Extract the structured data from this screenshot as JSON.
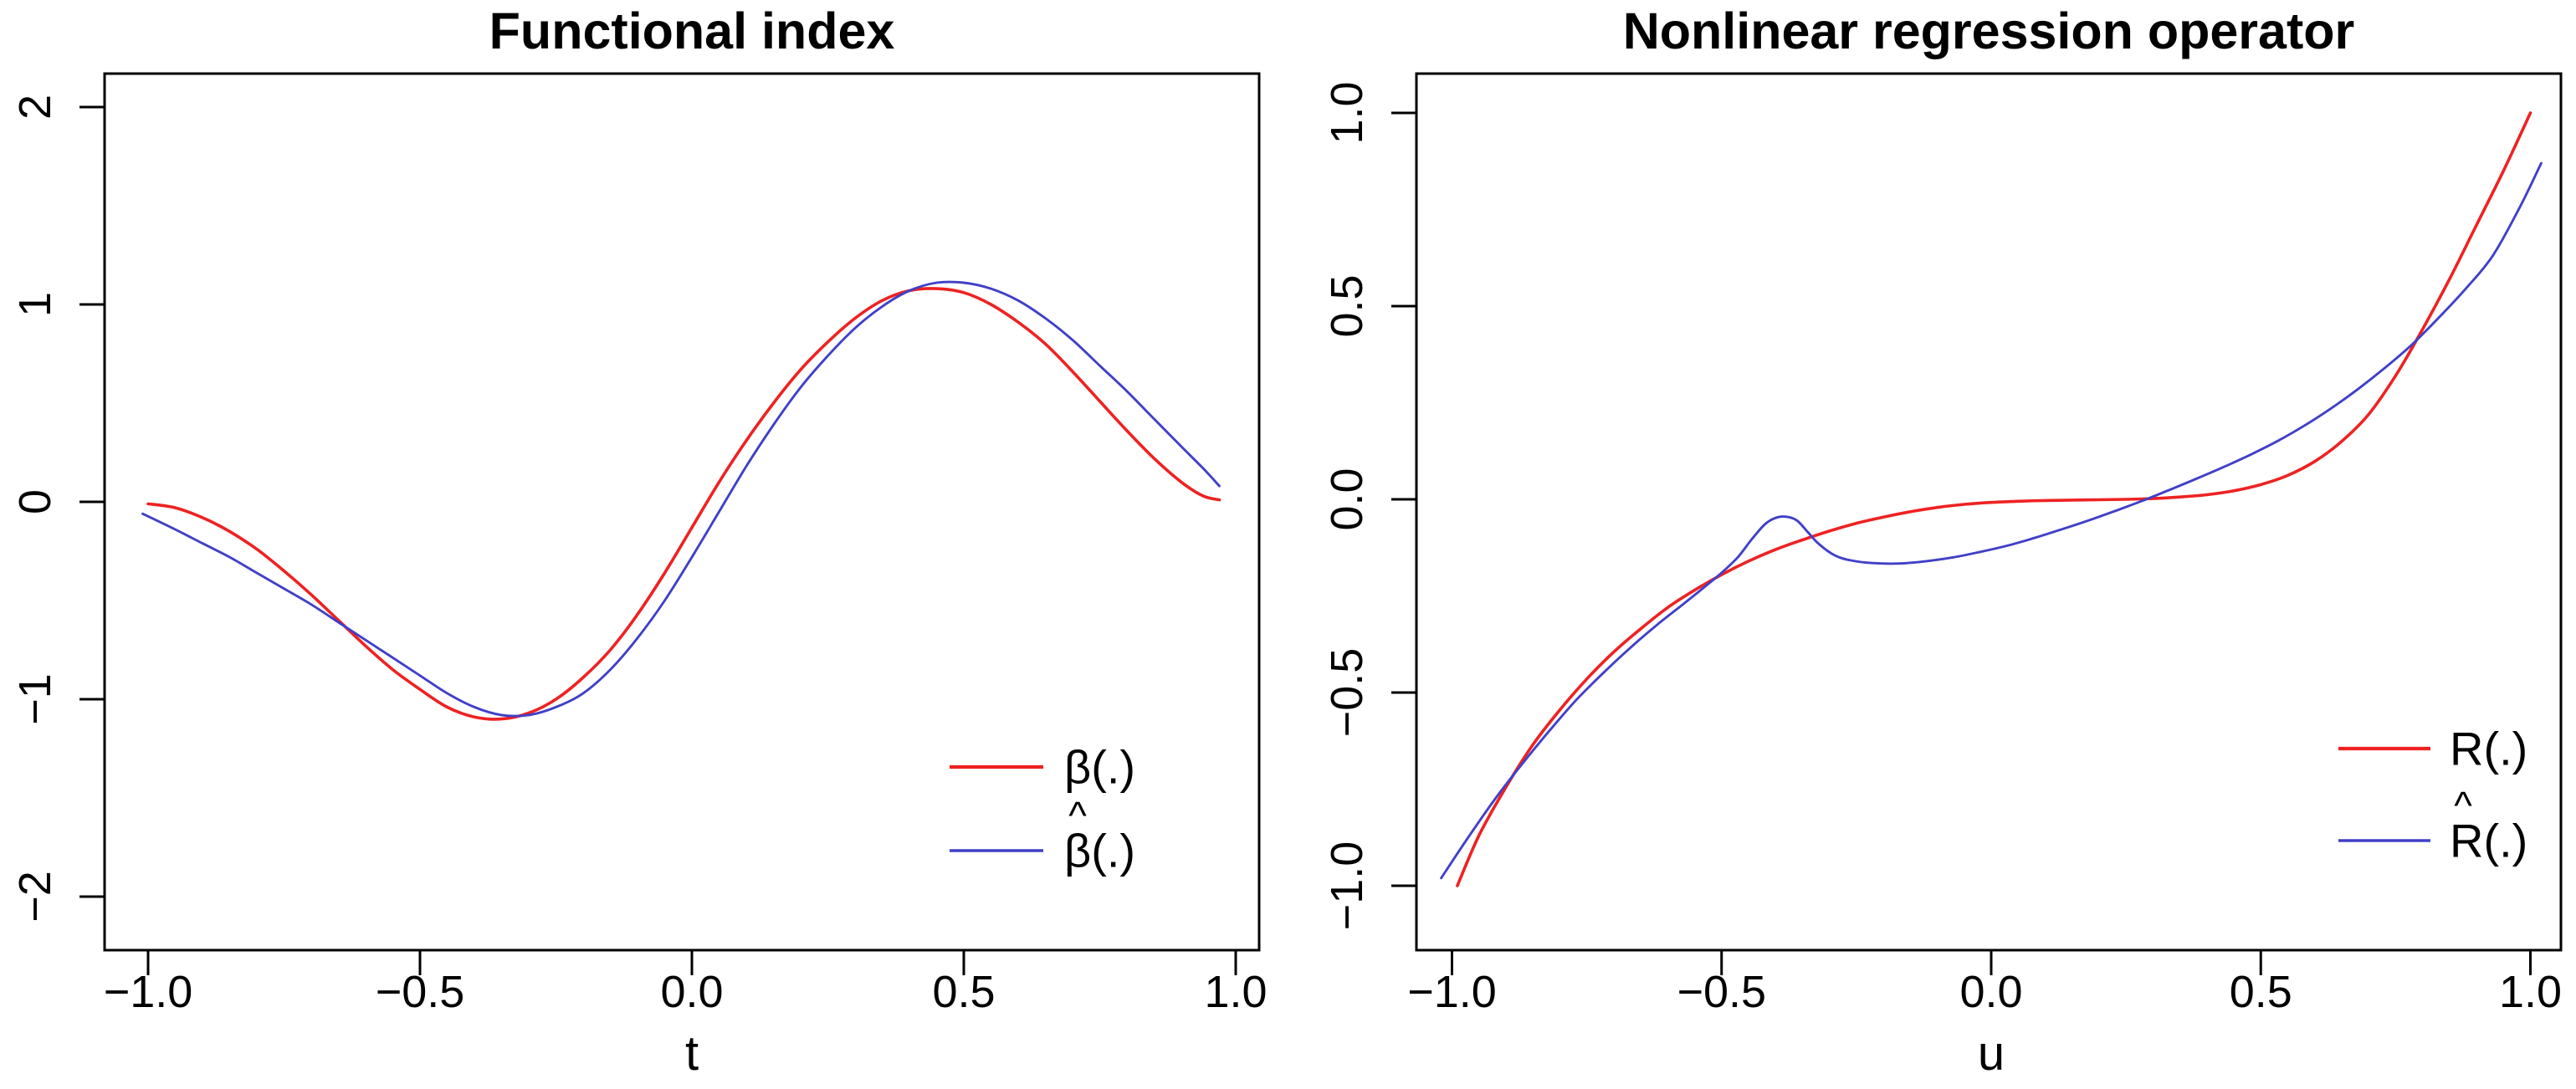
{
  "page": {
    "background": "#ffffff",
    "text_color": "#000000"
  },
  "chart_data": [
    {
      "type": "line",
      "title": "Functional index",
      "xlabel": "t",
      "ylabel": "",
      "xlim": [
        -1.08,
        1.05
      ],
      "ylim": [
        -2.22,
        2.17
      ],
      "grid": false,
      "legend_position": "bottom-right",
      "x_ticks": [
        {
          "value": -1.0,
          "label": "−1.0"
        },
        {
          "value": -0.5,
          "label": "−0.5"
        },
        {
          "value": 0.0,
          "label": "0.0"
        },
        {
          "value": 0.5,
          "label": "0.5"
        },
        {
          "value": 1.0,
          "label": "1.0"
        }
      ],
      "y_ticks": [
        {
          "value": -2,
          "label": "−2"
        },
        {
          "value": -1,
          "label": "−1"
        },
        {
          "value": 0,
          "label": "0"
        },
        {
          "value": 1,
          "label": "1"
        },
        {
          "value": 2,
          "label": "2"
        }
      ],
      "legend": [
        {
          "label": "β(.)",
          "base": "β",
          "hat": false,
          "suffix": "(.)",
          "color": "#ee2222"
        },
        {
          "label": "β̂(.)",
          "base": "β",
          "hat": true,
          "suffix": "(.)",
          "color": "#4040c8"
        }
      ],
      "series": [
        {
          "name": "beta-true",
          "color": "#ee2222",
          "width": 3.6,
          "points": [
            [
              -1.0,
              -0.01
            ],
            [
              -0.95,
              -0.03
            ],
            [
              -0.9,
              -0.08
            ],
            [
              -0.85,
              -0.15
            ],
            [
              -0.8,
              -0.24
            ],
            [
              -0.75,
              -0.35
            ],
            [
              -0.7,
              -0.47
            ],
            [
              -0.65,
              -0.6
            ],
            [
              -0.6,
              -0.73
            ],
            [
              -0.55,
              -0.85
            ],
            [
              -0.5,
              -0.95
            ],
            [
              -0.45,
              -1.04
            ],
            [
              -0.4,
              -1.09
            ],
            [
              -0.35,
              -1.1
            ],
            [
              -0.3,
              -1.07
            ],
            [
              -0.25,
              -1.0
            ],
            [
              -0.2,
              -0.89
            ],
            [
              -0.15,
              -0.75
            ],
            [
              -0.1,
              -0.57
            ],
            [
              -0.05,
              -0.36
            ],
            [
              0.0,
              -0.13
            ],
            [
              0.05,
              0.1
            ],
            [
              0.1,
              0.31
            ],
            [
              0.15,
              0.5
            ],
            [
              0.2,
              0.67
            ],
            [
              0.25,
              0.81
            ],
            [
              0.3,
              0.93
            ],
            [
              0.35,
              1.02
            ],
            [
              0.4,
              1.07
            ],
            [
              0.45,
              1.08
            ],
            [
              0.5,
              1.06
            ],
            [
              0.55,
              1.0
            ],
            [
              0.6,
              0.91
            ],
            [
              0.65,
              0.8
            ],
            [
              0.7,
              0.66
            ],
            [
              0.75,
              0.51
            ],
            [
              0.8,
              0.36
            ],
            [
              0.85,
              0.22
            ],
            [
              0.9,
              0.1
            ],
            [
              0.94,
              0.03
            ],
            [
              0.97,
              0.01
            ]
          ]
        },
        {
          "name": "beta-estimate",
          "color": "#4040c8",
          "width": 2.9,
          "points": [
            [
              -1.01,
              -0.06
            ],
            [
              -0.95,
              -0.14
            ],
            [
              -0.9,
              -0.21
            ],
            [
              -0.85,
              -0.28
            ],
            [
              -0.8,
              -0.36
            ],
            [
              -0.75,
              -0.44
            ],
            [
              -0.7,
              -0.52
            ],
            [
              -0.65,
              -0.61
            ],
            [
              -0.6,
              -0.7
            ],
            [
              -0.55,
              -0.79
            ],
            [
              -0.5,
              -0.88
            ],
            [
              -0.45,
              -0.97
            ],
            [
              -0.4,
              -1.04
            ],
            [
              -0.35,
              -1.08
            ],
            [
              -0.3,
              -1.08
            ],
            [
              -0.25,
              -1.04
            ],
            [
              -0.2,
              -0.97
            ],
            [
              -0.15,
              -0.85
            ],
            [
              -0.1,
              -0.69
            ],
            [
              -0.05,
              -0.5
            ],
            [
              0.0,
              -0.28
            ],
            [
              0.05,
              -0.05
            ],
            [
              0.1,
              0.18
            ],
            [
              0.15,
              0.39
            ],
            [
              0.2,
              0.58
            ],
            [
              0.25,
              0.74
            ],
            [
              0.3,
              0.88
            ],
            [
              0.35,
              0.99
            ],
            [
              0.4,
              1.07
            ],
            [
              0.45,
              1.11
            ],
            [
              0.5,
              1.11
            ],
            [
              0.55,
              1.08
            ],
            [
              0.6,
              1.02
            ],
            [
              0.65,
              0.93
            ],
            [
              0.7,
              0.82
            ],
            [
              0.75,
              0.69
            ],
            [
              0.8,
              0.56
            ],
            [
              0.85,
              0.42
            ],
            [
              0.9,
              0.28
            ],
            [
              0.94,
              0.17
            ],
            [
              0.97,
              0.08
            ]
          ]
        }
      ]
    },
    {
      "type": "line",
      "title": "Nonlinear regression operator",
      "xlabel": "u",
      "ylabel": "",
      "xlim": [
        -1.07,
        1.06
      ],
      "ylim": [
        -1.17,
        1.1
      ],
      "grid": false,
      "legend_position": "bottom-right",
      "x_ticks": [
        {
          "value": -1.0,
          "label": "−1.0"
        },
        {
          "value": -0.5,
          "label": "−0.5"
        },
        {
          "value": 0.0,
          "label": "0.0"
        },
        {
          "value": 0.5,
          "label": "0.5"
        },
        {
          "value": 1.0,
          "label": "1.0"
        }
      ],
      "y_ticks": [
        {
          "value": -1.0,
          "label": "−1.0"
        },
        {
          "value": -0.5,
          "label": "−0.5"
        },
        {
          "value": 0.0,
          "label": "0.0"
        },
        {
          "value": 0.5,
          "label": "0.5"
        },
        {
          "value": 1.0,
          "label": "1.0"
        }
      ],
      "legend": [
        {
          "label": "R(.)",
          "base": "R",
          "hat": false,
          "suffix": "(.)",
          "color": "#ee2222"
        },
        {
          "label": "R̂(.)",
          "base": "R",
          "hat": true,
          "suffix": "(.)",
          "color": "#4040c8"
        }
      ],
      "series": [
        {
          "name": "R-true",
          "color": "#ee2222",
          "width": 3.6,
          "points": [
            [
              -0.99,
              -1.0
            ],
            [
              -0.95,
              -0.87
            ],
            [
              -0.9,
              -0.745
            ],
            [
              -0.85,
              -0.635
            ],
            [
              -0.8,
              -0.545
            ],
            [
              -0.75,
              -0.465
            ],
            [
              -0.7,
              -0.395
            ],
            [
              -0.65,
              -0.335
            ],
            [
              -0.6,
              -0.28
            ],
            [
              -0.55,
              -0.235
            ],
            [
              -0.5,
              -0.195
            ],
            [
              -0.45,
              -0.16
            ],
            [
              -0.4,
              -0.13
            ],
            [
              -0.35,
              -0.105
            ],
            [
              -0.3,
              -0.082
            ],
            [
              -0.25,
              -0.062
            ],
            [
              -0.2,
              -0.046
            ],
            [
              -0.15,
              -0.032
            ],
            [
              -0.1,
              -0.021
            ],
            [
              -0.05,
              -0.013
            ],
            [
              0.0,
              -0.008
            ],
            [
              0.05,
              -0.005
            ],
            [
              0.1,
              -0.003
            ],
            [
              0.15,
              -0.002
            ],
            [
              0.2,
              -0.001
            ],
            [
              0.25,
              0.0
            ],
            [
              0.3,
              0.002
            ],
            [
              0.35,
              0.006
            ],
            [
              0.4,
              0.012
            ],
            [
              0.45,
              0.022
            ],
            [
              0.5,
              0.038
            ],
            [
              0.55,
              0.062
            ],
            [
              0.6,
              0.098
            ],
            [
              0.65,
              0.15
            ],
            [
              0.7,
              0.22
            ],
            [
              0.75,
              0.32
            ],
            [
              0.8,
              0.44
            ],
            [
              0.85,
              0.57
            ],
            [
              0.9,
              0.71
            ],
            [
              0.95,
              0.85
            ],
            [
              1.0,
              1.0
            ]
          ]
        },
        {
          "name": "R-estimate",
          "color": "#4040c8",
          "width": 2.9,
          "points": [
            [
              -1.02,
              -0.98
            ],
            [
              -0.97,
              -0.875
            ],
            [
              -0.92,
              -0.775
            ],
            [
              -0.87,
              -0.685
            ],
            [
              -0.82,
              -0.6
            ],
            [
              -0.77,
              -0.52
            ],
            [
              -0.72,
              -0.45
            ],
            [
              -0.67,
              -0.385
            ],
            [
              -0.62,
              -0.325
            ],
            [
              -0.57,
              -0.27
            ],
            [
              -0.53,
              -0.225
            ],
            [
              -0.5,
              -0.19
            ],
            [
              -0.47,
              -0.15
            ],
            [
              -0.445,
              -0.105
            ],
            [
              -0.42,
              -0.065
            ],
            [
              -0.4,
              -0.048
            ],
            [
              -0.38,
              -0.045
            ],
            [
              -0.36,
              -0.055
            ],
            [
              -0.34,
              -0.085
            ],
            [
              -0.32,
              -0.115
            ],
            [
              -0.29,
              -0.145
            ],
            [
              -0.26,
              -0.158
            ],
            [
              -0.22,
              -0.165
            ],
            [
              -0.17,
              -0.166
            ],
            [
              -0.12,
              -0.16
            ],
            [
              -0.07,
              -0.15
            ],
            [
              -0.02,
              -0.136
            ],
            [
              0.03,
              -0.12
            ],
            [
              0.08,
              -0.1
            ],
            [
              0.13,
              -0.078
            ],
            [
              0.18,
              -0.055
            ],
            [
              0.23,
              -0.03
            ],
            [
              0.28,
              -0.004
            ],
            [
              0.33,
              0.024
            ],
            [
              0.38,
              0.053
            ],
            [
              0.43,
              0.083
            ],
            [
              0.48,
              0.115
            ],
            [
              0.53,
              0.15
            ],
            [
              0.58,
              0.19
            ],
            [
              0.63,
              0.235
            ],
            [
              0.68,
              0.285
            ],
            [
              0.73,
              0.34
            ],
            [
              0.78,
              0.4
            ],
            [
              0.83,
              0.47
            ],
            [
              0.88,
              0.545
            ],
            [
              0.93,
              0.63
            ],
            [
              0.98,
              0.755
            ],
            [
              1.02,
              0.87
            ]
          ]
        }
      ]
    }
  ]
}
